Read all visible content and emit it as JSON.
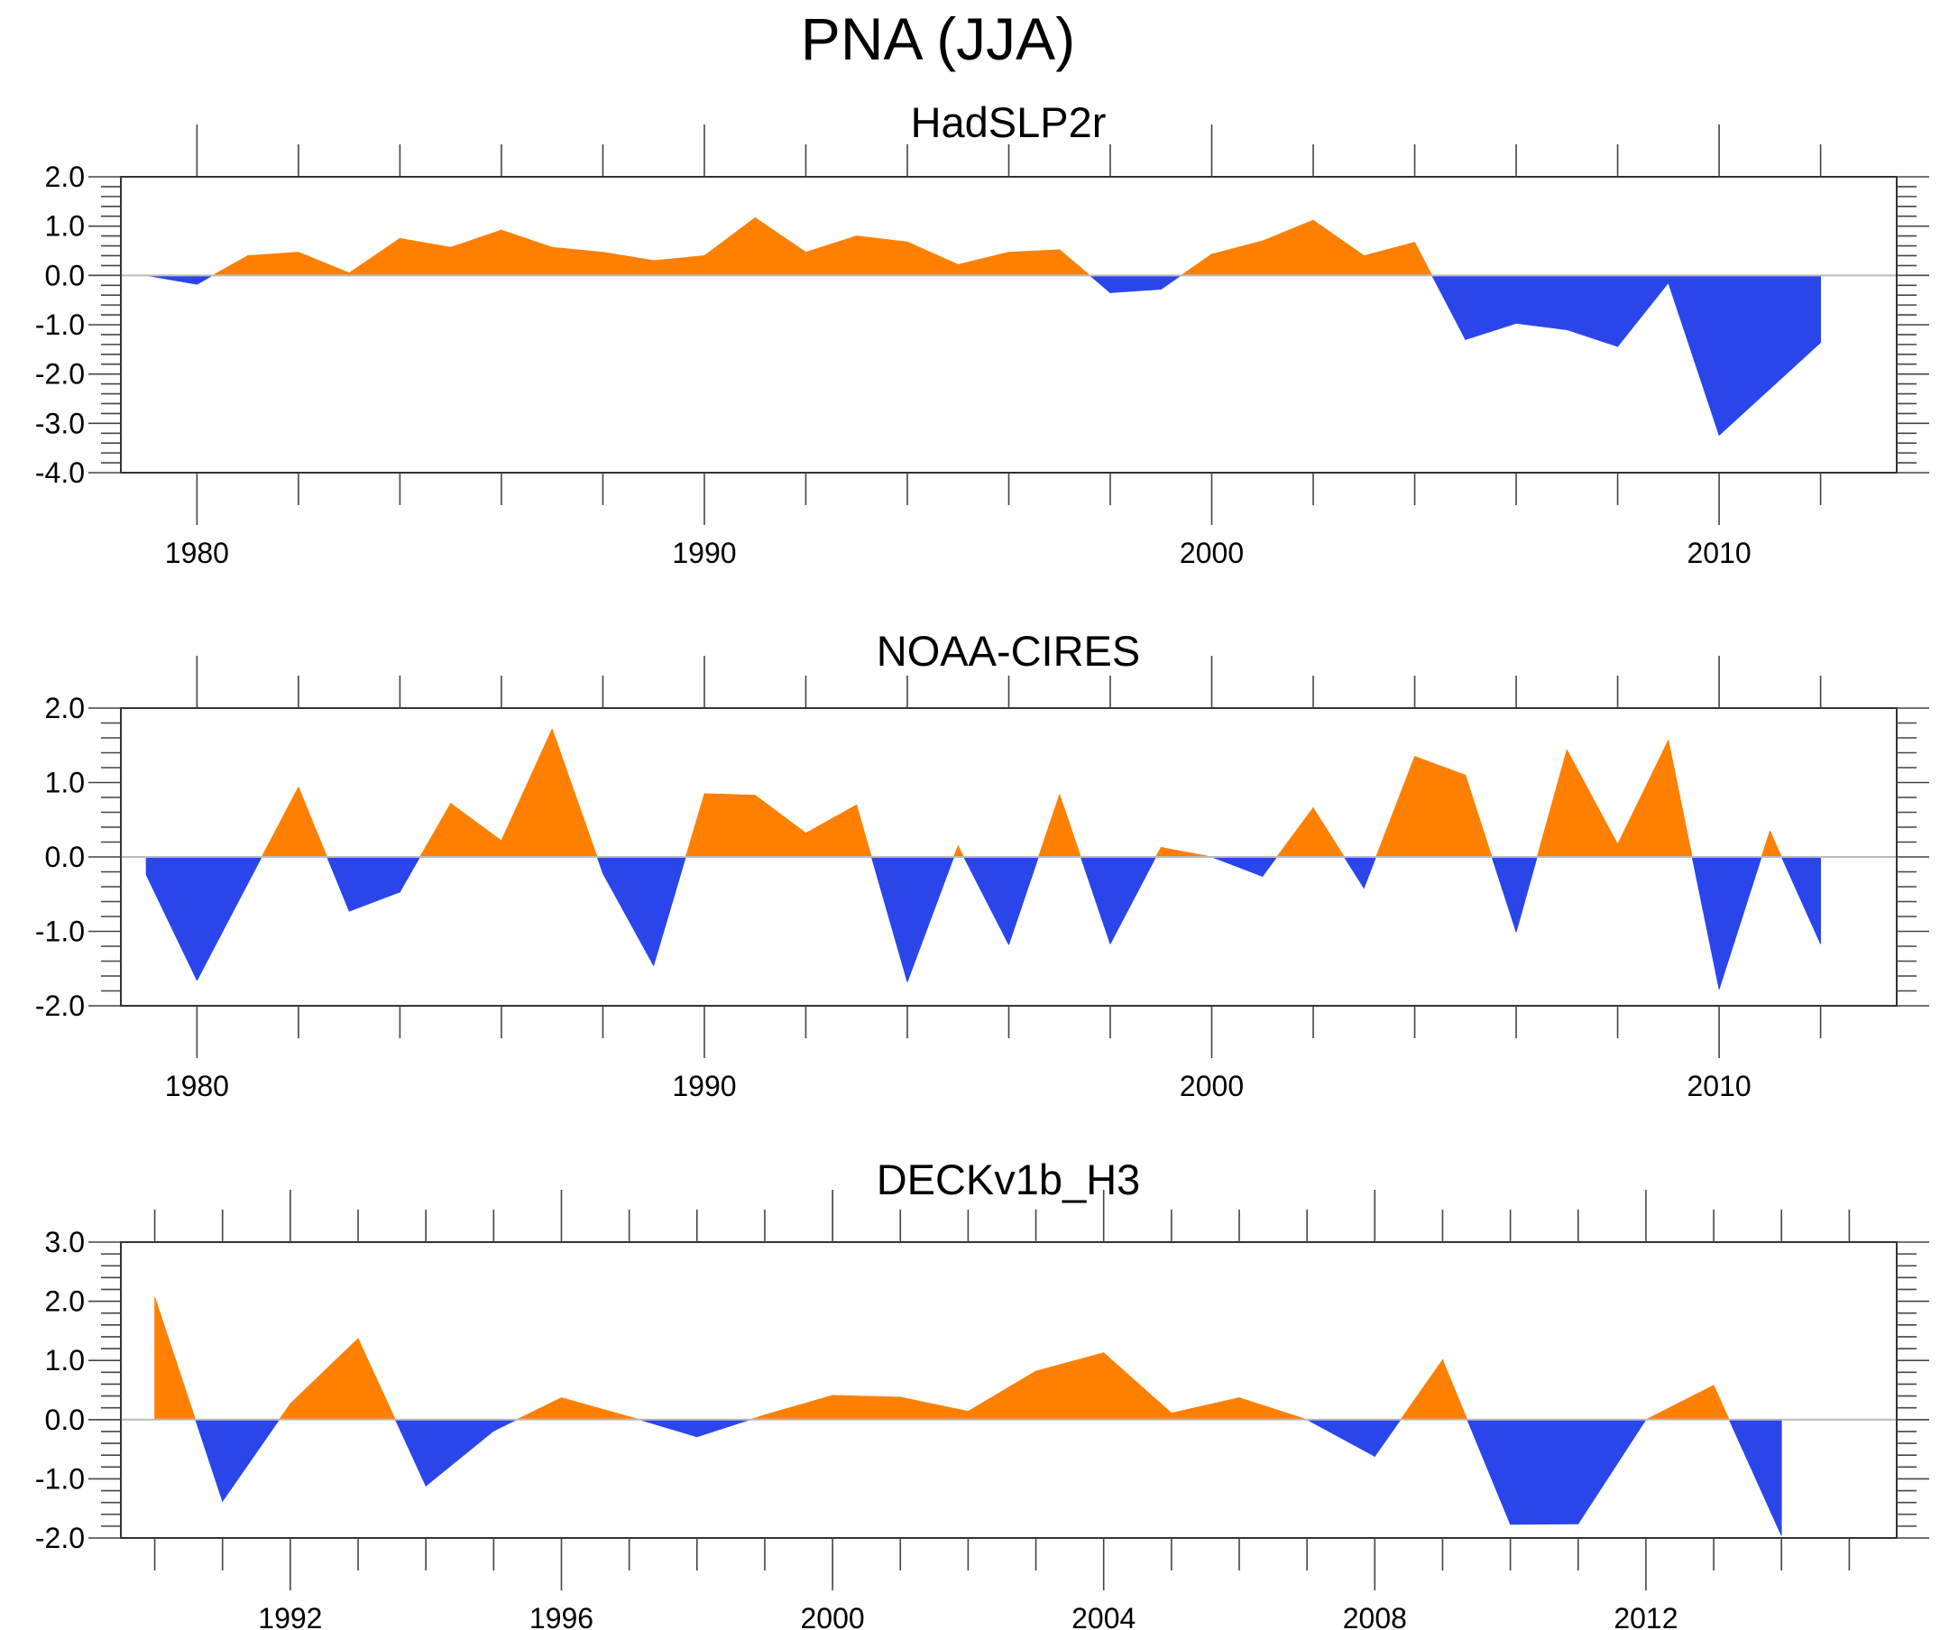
{
  "figure": {
    "title": "PNA (JJA)",
    "colors": {
      "positive": "#ff8000",
      "negative": "#2a46eb",
      "axis": "#000000",
      "zero_line": "#bbbbbb"
    }
  },
  "chart_data": [
    {
      "type": "area",
      "title": "HadSLP2r",
      "xlabel": "",
      "ylabel": "",
      "xlim": [
        1978.5,
        2013.5
      ],
      "ylim": [
        -4.0,
        2.0
      ],
      "xticks": [
        1980,
        1990,
        2000,
        2010
      ],
      "xtick_labels": [
        "1980",
        "1990",
        "2000",
        "2010"
      ],
      "x_minor_step": 2,
      "yticks": [
        2.0,
        1.0,
        0.0,
        -1.0,
        -2.0,
        -3.0,
        -4.0
      ],
      "ytick_labels": [
        "2.0",
        "1.0",
        "0.0",
        "-1.0",
        "-2.0",
        "-3.0",
        "-4.0"
      ],
      "grid": false,
      "fill_above_zero": "orange",
      "fill_below_zero": "blue",
      "x": [
        1979,
        1980,
        1981,
        1982,
        1983,
        1984,
        1985,
        1986,
        1987,
        1988,
        1989,
        1990,
        1991,
        1992,
        1993,
        1994,
        1995,
        1996,
        1997,
        1998,
        1999,
        2000,
        2001,
        2002,
        2003,
        2004,
        2005,
        2006,
        2007,
        2008,
        2009,
        2010,
        2011,
        2012
      ],
      "values": [
        0.0,
        -0.18,
        0.4,
        0.47,
        0.05,
        0.75,
        0.57,
        0.92,
        0.57,
        0.47,
        0.3,
        0.4,
        1.17,
        0.47,
        0.8,
        0.68,
        0.22,
        0.47,
        0.52,
        -0.35,
        -0.28,
        0.43,
        0.7,
        1.12,
        0.4,
        0.67,
        -1.3,
        -0.97,
        -1.1,
        -1.44,
        -0.15,
        -3.24,
        -2.3,
        -1.36
      ]
    },
    {
      "type": "area",
      "title": "NOAA-CIRES",
      "xlabel": "",
      "ylabel": "",
      "xlim": [
        1978.5,
        2013.5
      ],
      "ylim": [
        -2.0,
        2.0
      ],
      "xticks": [
        1980,
        1990,
        2000,
        2010
      ],
      "xtick_labels": [
        "1980",
        "1990",
        "2000",
        "2010"
      ],
      "x_minor_step": 2,
      "yticks": [
        2.0,
        1.0,
        0.0,
        -1.0,
        -2.0
      ],
      "ytick_labels": [
        "2.0",
        "1.0",
        "0.0",
        "-1.0",
        "-2.0"
      ],
      "grid": false,
      "fill_above_zero": "orange",
      "fill_below_zero": "blue",
      "x": [
        1979,
        1980,
        1981,
        1982,
        1983,
        1984,
        1985,
        1986,
        1987,
        1988,
        1989,
        1990,
        1991,
        1992,
        1993,
        1994,
        1995,
        1996,
        1997,
        1998,
        1999,
        2000,
        2001,
        2002,
        2003,
        2004,
        2005,
        2006,
        2007,
        2008,
        2009,
        2010,
        2011,
        2012
      ],
      "values": [
        -0.24,
        -1.66,
        -0.36,
        0.94,
        -0.73,
        -0.47,
        0.72,
        0.22,
        1.72,
        -0.22,
        -1.46,
        0.85,
        0.83,
        0.32,
        0.7,
        -1.68,
        0.15,
        -1.18,
        0.84,
        -1.17,
        0.13,
        0.0,
        -0.26,
        0.66,
        -0.42,
        1.35,
        1.1,
        -1.01,
        1.44,
        0.17,
        1.57,
        -1.78,
        0.35,
        -1.17
      ]
    },
    {
      "type": "area",
      "title": "DECKv1b_H3",
      "xlabel": "",
      "ylabel": "",
      "xlim": [
        1989.5,
        2015.7
      ],
      "ylim": [
        -2.0,
        3.0
      ],
      "xticks": [
        1992,
        1996,
        2000,
        2004,
        2008,
        2012
      ],
      "xtick_labels": [
        "1992",
        "1996",
        "2000",
        "2004",
        "2008",
        "2012"
      ],
      "x_minor_step": 1,
      "yticks": [
        3.0,
        2.0,
        1.0,
        0.0,
        -1.0,
        -2.0
      ],
      "ytick_labels": [
        "3.0",
        "2.0",
        "1.0",
        "0.0",
        "-1.0",
        "-2.0"
      ],
      "grid": false,
      "fill_above_zero": "orange",
      "fill_below_zero": "blue",
      "x": [
        1990,
        1991,
        1992,
        1993,
        1994,
        1995,
        1996,
        1997,
        1998,
        1999,
        2000,
        2001,
        2002,
        2003,
        2004,
        2005,
        2006,
        2007,
        2008,
        2009,
        2010,
        2011,
        2012,
        2013,
        2014
      ],
      "values": [
        2.07,
        -1.38,
        0.27,
        1.37,
        -1.12,
        -0.19,
        0.37,
        0.05,
        -0.29,
        0.08,
        0.41,
        0.38,
        0.14,
        0.82,
        1.13,
        0.11,
        0.37,
        0.0,
        -0.62,
        1.01,
        -1.77,
        -1.76,
        0.0,
        0.58,
        -1.96
      ]
    }
  ]
}
